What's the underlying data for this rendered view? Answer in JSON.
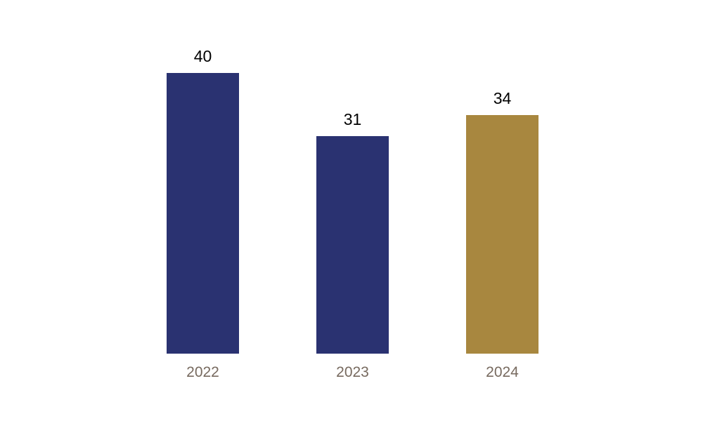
{
  "chart_data": {
    "type": "bar",
    "title": "",
    "xlabel": "",
    "ylabel": "",
    "categories": [
      "2022",
      "2023",
      "2024"
    ],
    "values": [
      40,
      31,
      34
    ],
    "bar_colors": [
      "#2A3271",
      "#2A3271",
      "#A8873F"
    ],
    "value_label_color": "#000000",
    "category_label_color": "#776A5F",
    "background_color": "#FFFFFF",
    "ylim": [
      0,
      40
    ],
    "grid": false,
    "axes_visible": false,
    "legend": null,
    "value_labels_visible": true
  }
}
